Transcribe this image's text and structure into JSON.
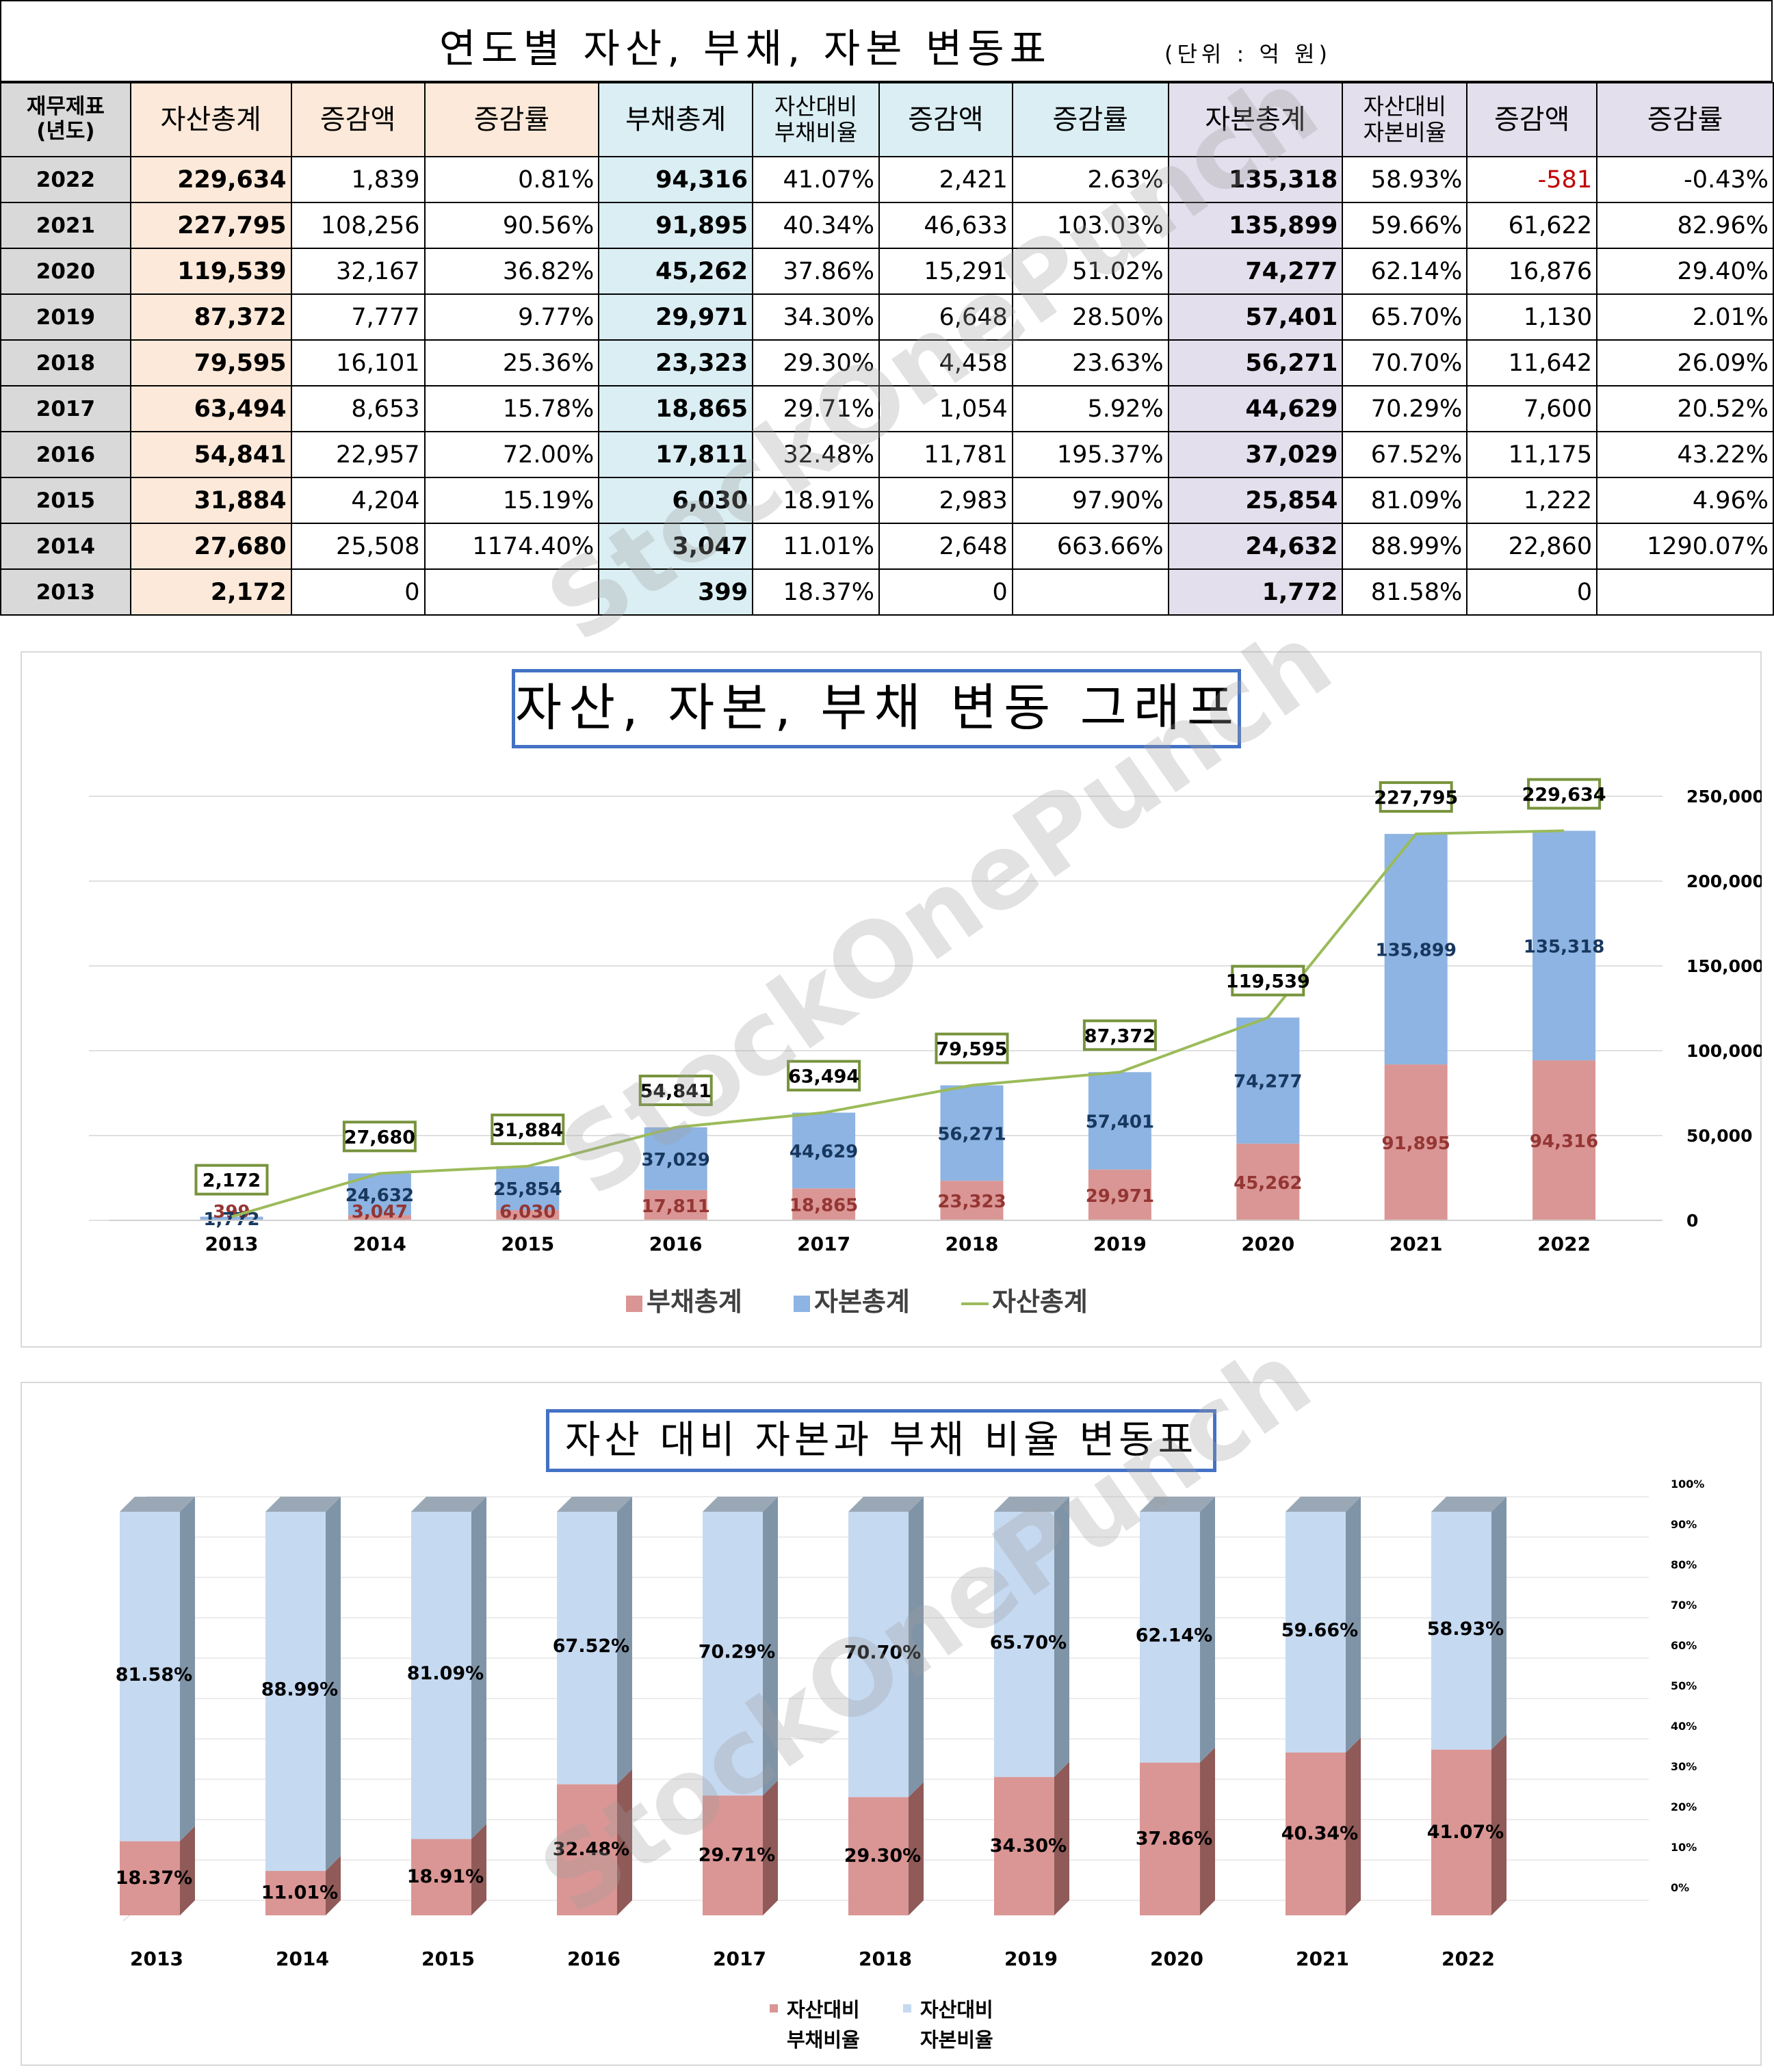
{
  "header": {
    "title": "연도별 자산, 부채, 자본 변동표",
    "unit": "(단위 : 억 원)"
  },
  "table": {
    "headers": [
      "재무제표\n(년도)",
      "자산총계",
      "증감액",
      "증감률",
      "부채총계",
      "자산대비\n부채비율",
      "증감액",
      "증감률",
      "자본총계",
      "자산대비\n자본비율",
      "증감액",
      "증감률"
    ],
    "rows": [
      [
        "2022",
        "229,634",
        "1,839",
        "0.81%",
        "94,316",
        "41.07%",
        "2,421",
        "2.63%",
        "135,318",
        "58.93%",
        "-581",
        "-0.43%"
      ],
      [
        "2021",
        "227,795",
        "108,256",
        "90.56%",
        "91,895",
        "40.34%",
        "46,633",
        "103.03%",
        "135,899",
        "59.66%",
        "61,622",
        "82.96%"
      ],
      [
        "2020",
        "119,539",
        "32,167",
        "36.82%",
        "45,262",
        "37.86%",
        "15,291",
        "51.02%",
        "74,277",
        "62.14%",
        "16,876",
        "29.40%"
      ],
      [
        "2019",
        "87,372",
        "7,777",
        "9.77%",
        "29,971",
        "34.30%",
        "6,648",
        "28.50%",
        "57,401",
        "65.70%",
        "1,130",
        "2.01%"
      ],
      [
        "2018",
        "79,595",
        "16,101",
        "25.36%",
        "23,323",
        "29.30%",
        "4,458",
        "23.63%",
        "56,271",
        "70.70%",
        "11,642",
        "26.09%"
      ],
      [
        "2017",
        "63,494",
        "8,653",
        "15.78%",
        "18,865",
        "29.71%",
        "1,054",
        "5.92%",
        "44,629",
        "70.29%",
        "7,600",
        "20.52%"
      ],
      [
        "2016",
        "54,841",
        "22,957",
        "72.00%",
        "17,811",
        "32.48%",
        "11,781",
        "195.37%",
        "37,029",
        "67.52%",
        "11,175",
        "43.22%"
      ],
      [
        "2015",
        "31,884",
        "4,204",
        "15.19%",
        "6,030",
        "18.91%",
        "2,983",
        "97.90%",
        "25,854",
        "81.09%",
        "1,222",
        "4.96%"
      ],
      [
        "2014",
        "27,680",
        "25,508",
        "1174.40%",
        "3,047",
        "11.01%",
        "2,648",
        "663.66%",
        "24,632",
        "88.99%",
        "22,860",
        "1290.07%"
      ],
      [
        "2013",
        "2,172",
        "0",
        "",
        "399",
        "18.37%",
        "0",
        "",
        "1,772",
        "81.58%",
        "0",
        ""
      ]
    ]
  },
  "watermark": "StockOnePunch",
  "colors": {
    "asset_bg": "#fde9d9",
    "debt_bg": "#daeef3",
    "equity_bg": "#e4dfec",
    "debt_bar": "#da9694",
    "equity_bar": "#8db4e2",
    "asset_line": "#9bbb59",
    "ratio_equity": "#c5d9f1",
    "negative": "#c00000"
  },
  "chart_data": [
    {
      "type": "bar",
      "title": "자산, 자본, 부채 변동 그래프",
      "categories": [
        "2013",
        "2014",
        "2015",
        "2016",
        "2017",
        "2018",
        "2019",
        "2020",
        "2021",
        "2022"
      ],
      "series": [
        {
          "name": "부채총계",
          "kind": "stacked-bar",
          "values": [
            399,
            3047,
            6030,
            17811,
            18865,
            23323,
            29971,
            45262,
            91895,
            94316
          ]
        },
        {
          "name": "자본총계",
          "kind": "stacked-bar",
          "values": [
            1772,
            24632,
            25854,
            37029,
            44629,
            56271,
            57401,
            74277,
            135899,
            135318
          ]
        },
        {
          "name": "자산총계",
          "kind": "line",
          "values": [
            2172,
            27680,
            31884,
            54841,
            63494,
            79595,
            87372,
            119539,
            227795,
            229634
          ]
        }
      ],
      "y_ticks": [
        "0",
        "50,000",
        "100,000",
        "150,000",
        "200,000",
        "250,000"
      ],
      "ylim": [
        0,
        250000
      ],
      "grid": true,
      "legend": "bottom",
      "y_axis": "right"
    },
    {
      "type": "bar",
      "title": "자산 대비 자본과 부채 비율 변동표",
      "categories": [
        "2013",
        "2014",
        "2015",
        "2016",
        "2017",
        "2018",
        "2019",
        "2020",
        "2021",
        "2022"
      ],
      "series": [
        {
          "name": "자산대비 부채비율",
          "values": [
            18.37,
            11.01,
            18.91,
            32.48,
            29.71,
            29.3,
            34.3,
            37.86,
            40.34,
            41.07
          ]
        },
        {
          "name": "자산대비 자본비율",
          "values": [
            81.58,
            88.99,
            81.09,
            67.52,
            70.29,
            70.7,
            65.7,
            62.14,
            59.66,
            58.93
          ]
        }
      ],
      "value_labels": {
        "debt": [
          "18.37%",
          "11.01%",
          "18.91%",
          "32.48%",
          "29.71%",
          "29.30%",
          "34.30%",
          "37.86%",
          "40.34%",
          "41.07%"
        ],
        "equity": [
          "81.58%",
          "88.99%",
          "81.09%",
          "67.52%",
          "70.29%",
          "70.70%",
          "65.70%",
          "62.14%",
          "59.66%",
          "58.93%"
        ]
      },
      "legend_labels": [
        "자산대비\n부채비율",
        "자산대비\n자본비율"
      ],
      "y_ticks": [
        "0%",
        "10%",
        "20%",
        "30%",
        "40%",
        "50%",
        "60%",
        "70%",
        "80%",
        "90%",
        "100%"
      ],
      "ylim": [
        0,
        100
      ],
      "stacked": "100%",
      "style": "3d",
      "legend": "bottom",
      "y_axis": "right"
    }
  ]
}
